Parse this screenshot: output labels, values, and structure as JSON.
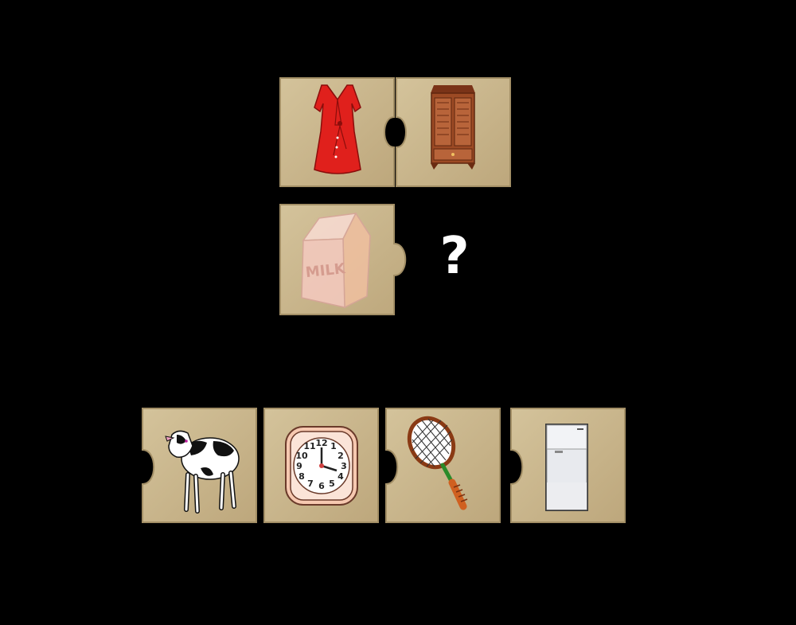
{
  "puzzle": {
    "pair": [
      {
        "item": "dress-icon"
      },
      {
        "item": "wardrobe-icon"
      }
    ],
    "query": {
      "item": "milk-carton-icon",
      "label": "MILK"
    },
    "question_mark": "?"
  },
  "choices": [
    {
      "item": "cow-icon"
    },
    {
      "item": "alarm-clock-icon",
      "numbers": [
        "12",
        "1",
        "2",
        "3",
        "4",
        "5",
        "6",
        "7",
        "8",
        "9",
        "10",
        "11"
      ]
    },
    {
      "item": "tennis-racket-icon"
    },
    {
      "item": "refrigerator-icon"
    }
  ],
  "colors": {
    "background": "#000000",
    "tile": "#c8b58c",
    "tile_edge": "#a38f66",
    "dress": "#e0201c",
    "wardrobe": "#9c4a24",
    "milk": "#f2c8be"
  }
}
